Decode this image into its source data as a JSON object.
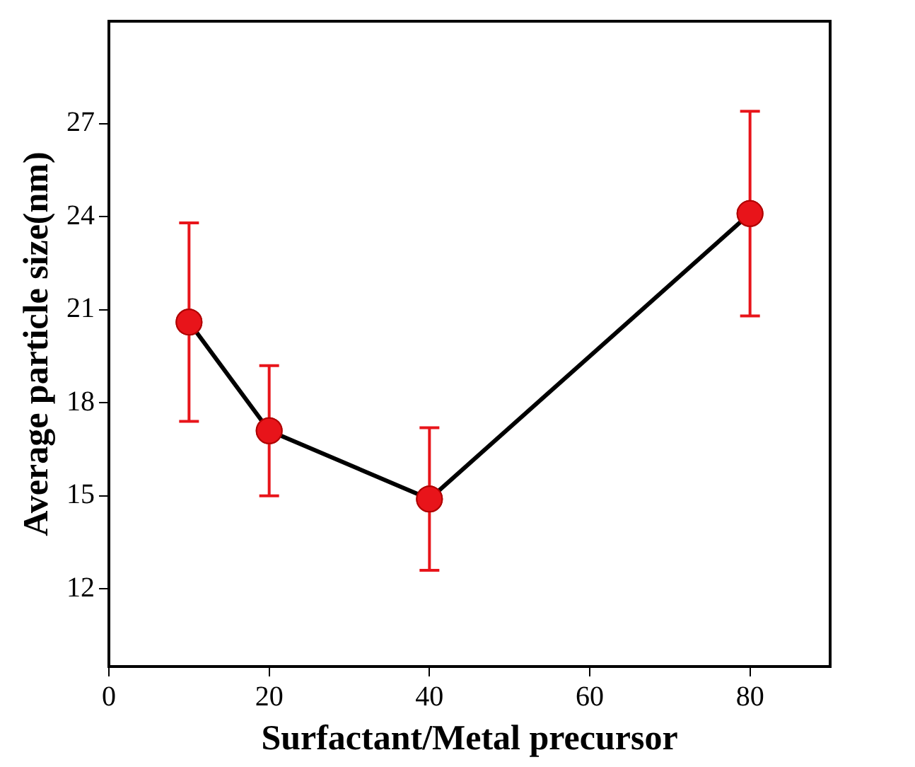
{
  "chart_data": {
    "type": "line",
    "xlabel": "Surfactant/Metal precursor",
    "ylabel": "Average particle size(nm)",
    "x": [
      10,
      20,
      40,
      80
    ],
    "series": [
      {
        "color": "#000000",
        "values": [
          20.6,
          17.1,
          14.9,
          24.1
        ],
        "errors": [
          3.2,
          2.1,
          2.3,
          3.3
        ]
      }
    ],
    "xlim": [
      0,
      90
    ],
    "xticks": [
      0,
      20,
      40,
      60,
      80
    ],
    "ylim": [
      9.5,
      30.3
    ],
    "yticks": [
      12,
      15,
      18,
      21,
      24,
      27
    ],
    "grid": false,
    "legend": false,
    "marker": "circle",
    "line_style": "solid"
  }
}
